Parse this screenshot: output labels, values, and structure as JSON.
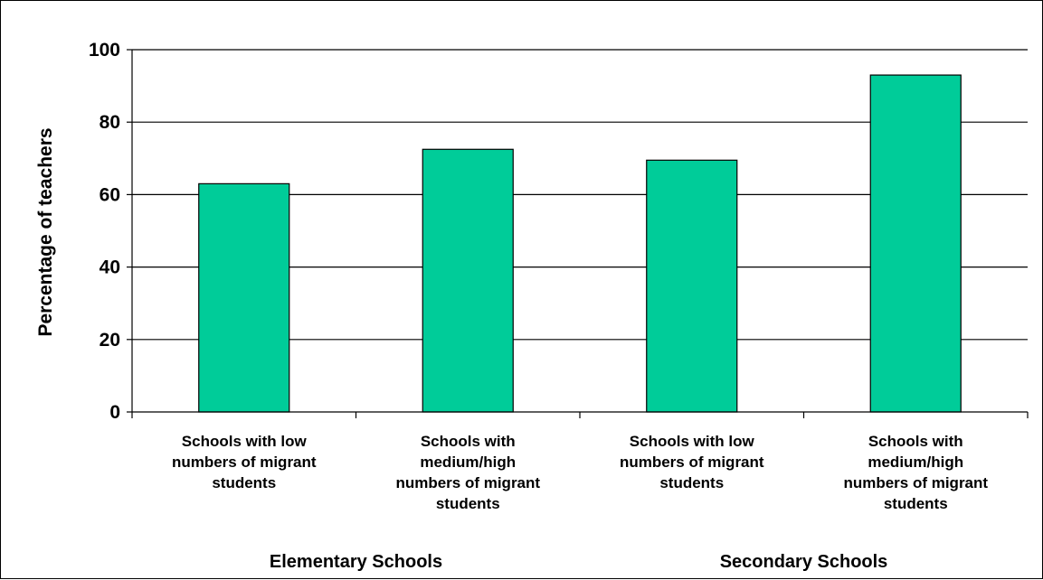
{
  "chart_data": {
    "type": "bar",
    "title": "",
    "xlabel": "",
    "ylabel": "Percentage of teachers",
    "ylim": [
      0,
      100
    ],
    "yticks": [
      "0",
      "20",
      "40",
      "60",
      "80",
      "100"
    ],
    "grid": true,
    "legend": "none",
    "bar_color": "#00CC99",
    "categories": [
      "Schools with low numbers of migrant students",
      "Schools with medium/high numbers of migrant students",
      "Schools with low numbers of migrant students",
      "Schools with medium/high numbers of migrant students"
    ],
    "category_lines": [
      [
        "Schools with low",
        "numbers of migrant",
        "students"
      ],
      [
        "Schools with",
        "medium/high",
        "numbers of migrant",
        "students"
      ],
      [
        "Schools with low",
        "numbers of migrant",
        "students"
      ],
      [
        "Schools with",
        "medium/high",
        "numbers of migrant",
        "students"
      ]
    ],
    "groups": [
      {
        "label": "Elementary Schools",
        "categories": [
          0,
          1
        ]
      },
      {
        "label": "Secondary Schools",
        "categories": [
          2,
          3
        ]
      }
    ],
    "values": [
      63,
      72.5,
      69.5,
      93
    ]
  }
}
